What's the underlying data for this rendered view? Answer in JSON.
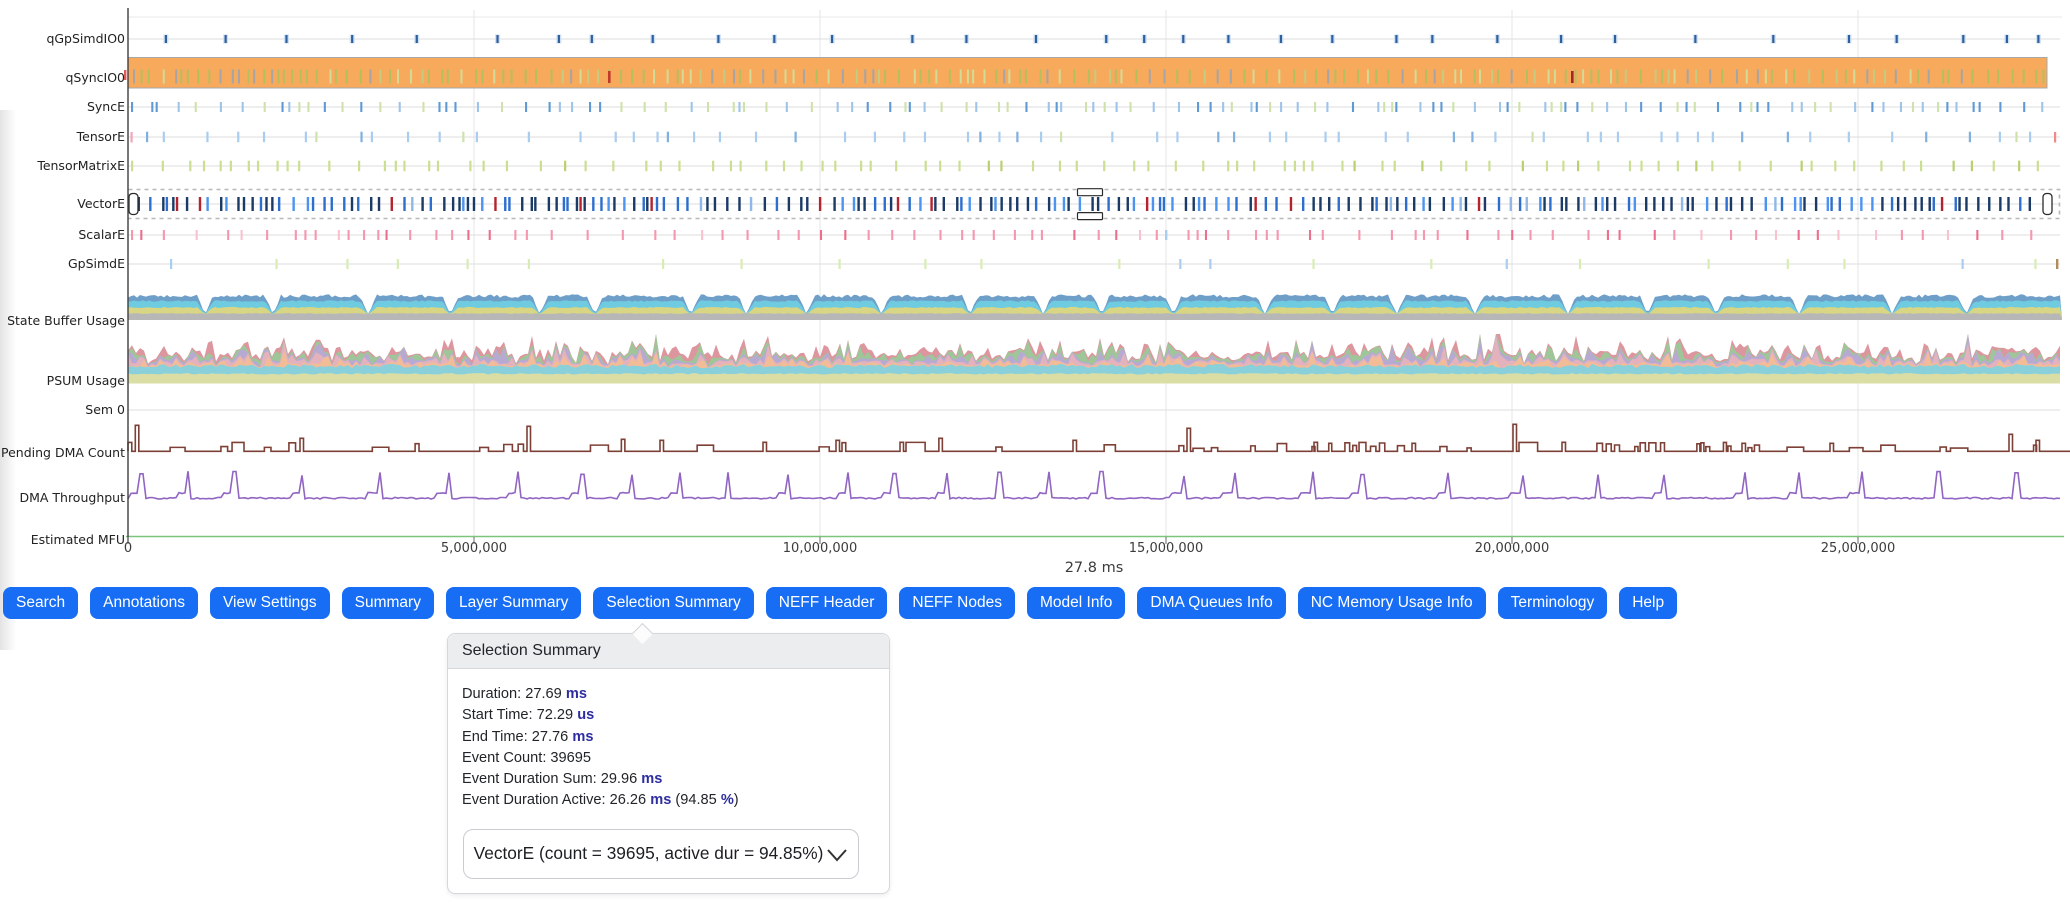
{
  "chart": {
    "rows": [
      "qGpSimdIO0",
      "qSyncIO0",
      "SyncE",
      "TensorE",
      "TensorMatrixE",
      "VectorE",
      "ScalarE",
      "GpSimdE",
      "State Buffer Usage",
      "PSUM Usage",
      "Sem 0",
      "Pending DMA Count",
      "DMA Throughput",
      "Estimated MFU"
    ],
    "x_ticks": [
      "0",
      "5,000,000",
      "10,000,000",
      "15,000,000",
      "20,000,000",
      "25,000,000"
    ],
    "duration_label": "27.8 ms"
  },
  "toolbar": {
    "buttons": [
      "Search",
      "Annotations",
      "View Settings",
      "Summary",
      "Layer Summary",
      "Selection Summary",
      "NEFF Header",
      "NEFF Nodes",
      "Model Info",
      "DMA Queues Info",
      "NC Memory Usage Info",
      "Terminology",
      "Help"
    ]
  },
  "panel": {
    "title": "Selection Summary",
    "stats": [
      {
        "segments": [
          {
            "text": "Duration: 27.69 "
          },
          {
            "text": "ms",
            "unit": true
          }
        ]
      },
      {
        "segments": [
          {
            "text": "Start Time: 72.29 "
          },
          {
            "text": "us",
            "unit": true
          }
        ]
      },
      {
        "segments": [
          {
            "text": "End Time: 27.76 "
          },
          {
            "text": "ms",
            "unit": true
          }
        ]
      },
      {
        "segments": [
          {
            "text": "Event Count: 39695"
          }
        ]
      },
      {
        "segments": [
          {
            "text": "Event Duration Sum: 29.96 "
          },
          {
            "text": "ms",
            "unit": true
          }
        ]
      },
      {
        "segments": [
          {
            "text": "Event Duration Active: 26.26 "
          },
          {
            "text": "ms",
            "unit": true
          },
          {
            "text": " (94.85 "
          },
          {
            "text": "%",
            "unit": true
          },
          {
            "text": ")"
          }
        ]
      }
    ],
    "dropdown_label": "VectorE (count = 39695, active dur = 94.85%)"
  },
  "colors": {
    "button_blue": "#176ef5",
    "unit_navy": "#2d2d9f",
    "orange_bar": "#f7a95c",
    "qgpsimd_dark": "#2e5f9f",
    "qgpsimd_halo": "#cfe0f2",
    "sync_blue": "#5f9ad5",
    "sync_light": "#9fc4ea",
    "tick_green": "#cfe2ab",
    "tensor_blue": "#a9cdf0",
    "matrix_green": "#cbdf92",
    "vector_navy": "#1b3a66",
    "vector_blue": "#2e6fce",
    "vector_light": "#4d94f0",
    "vector_red": "#b3242e",
    "scalar_pink": "#f597af",
    "gpsimd_green": "#d9ecb4",
    "pending_maroon": "#7d4036",
    "throughput_purple": "#9165c2",
    "mfu_green": "#7cc47c",
    "sbuf_gray": "#b7b7b7",
    "sbuf_yellow": "#d8d584",
    "sbuf_cyan": "#6fcbdf",
    "sbuf_blue": "#6e9fc9",
    "psum_yellow": "#e3df9f",
    "psum_cyan": "#7dd2e2",
    "psum_peach": "#f3bd92",
    "psum_pink": "#e9b3ba",
    "psum_lavender": "#b9a6d8",
    "psum_green": "#97cb97",
    "psum_red": "#d98a93"
  }
}
